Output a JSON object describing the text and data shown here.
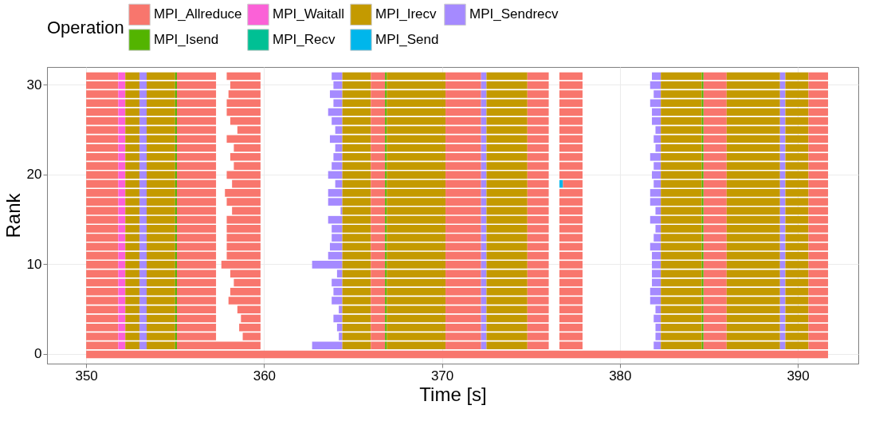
{
  "chart_data": {
    "type": "bar",
    "orientation": "horizontal",
    "xlabel": "Time [s]",
    "ylabel": "Rank",
    "legend_title": "Operation",
    "legend": "top",
    "grid": true,
    "categories": [
      null,
      "30",
      null,
      null,
      null,
      null,
      null,
      null,
      null,
      null,
      null,
      "20",
      null,
      null,
      null,
      null,
      null,
      null,
      null,
      null,
      null,
      "10",
      null,
      null,
      null,
      null,
      null,
      null,
      null,
      null,
      null,
      "0"
    ],
    "xlim": [
      347.8,
      393.4
    ],
    "xticks": [
      350,
      360,
      370,
      380,
      390
    ],
    "series": [
      {
        "name": "MPI_Allreduce",
        "color": "#f8766d",
        "base": [
          350,
          350,
          350,
          350,
          350,
          350,
          350,
          350,
          350,
          350,
          350,
          350,
          350,
          350,
          350,
          350,
          350,
          350,
          350,
          350,
          350,
          350,
          350,
          350,
          350,
          350,
          350,
          350,
          350,
          350,
          350,
          350
        ],
        "values": [
          1.8,
          1.8,
          1.8,
          1.8,
          1.8,
          1.8,
          1.8,
          1.8,
          1.8,
          1.8,
          1.8,
          1.8,
          1.8,
          1.8,
          1.8,
          1.8,
          1.8,
          1.8,
          1.8,
          1.8,
          1.8,
          1.8,
          1.8,
          1.8,
          1.8,
          1.8,
          1.8,
          1.8,
          1.8,
          1.8,
          1.8,
          41.7
        ]
      },
      {
        "name": "MPI_Waitall",
        "color": "#fb61d7",
        "base": [
          351.8,
          351.8,
          351.8,
          351.8,
          351.8,
          351.8,
          351.8,
          351.8,
          351.8,
          351.8,
          351.8,
          351.8,
          351.8,
          351.8,
          351.8,
          351.8,
          351.8,
          351.8,
          351.8,
          351.8,
          351.8,
          351.8,
          351.8,
          351.8,
          351.8,
          351.8,
          351.8,
          351.8,
          351.8,
          351.8,
          351.8,
          null
        ],
        "values": [
          0.4,
          0.4,
          0.4,
          0.4,
          0.4,
          0.4,
          0.4,
          0.4,
          0.4,
          0.4,
          0.4,
          0.4,
          0.4,
          0.4,
          0.4,
          0.4,
          0.4,
          0.4,
          0.4,
          0.4,
          0.4,
          0.4,
          0.4,
          0.4,
          0.4,
          0.4,
          0.4,
          0.4,
          0.4,
          0.4,
          0.4,
          null
        ]
      },
      {
        "name": "MPI_Irecv",
        "color": "#c49a00",
        "base": [
          352.2,
          352.2,
          352.2,
          352.2,
          352.2,
          352.2,
          352.2,
          352.2,
          352.2,
          352.2,
          352.2,
          352.2,
          352.2,
          352.2,
          352.2,
          352.2,
          352.2,
          352.2,
          352.2,
          352.2,
          352.2,
          352.2,
          352.2,
          352.2,
          352.2,
          352.2,
          352.2,
          352.2,
          352.2,
          352.2,
          352.2,
          null
        ],
        "values": [
          0.8,
          0.8,
          0.8,
          0.8,
          0.8,
          0.8,
          0.8,
          0.8,
          0.8,
          0.8,
          0.8,
          0.8,
          0.8,
          0.8,
          0.8,
          0.8,
          0.8,
          0.8,
          0.8,
          0.8,
          0.8,
          0.8,
          0.8,
          0.8,
          0.8,
          0.8,
          0.8,
          0.8,
          0.8,
          0.8,
          0.8,
          null
        ]
      },
      {
        "name": "MPI_Sendrecv",
        "color": "#a58aff",
        "base": [
          353,
          353,
          353,
          353,
          353,
          353,
          353,
          353,
          353,
          353,
          353,
          353,
          353,
          353,
          353,
          353,
          353,
          353,
          353,
          353,
          353,
          353,
          353,
          353,
          353,
          353,
          353,
          353,
          353,
          353,
          353,
          null
        ],
        "values": [
          0.4,
          0.4,
          0.4,
          0.4,
          0.4,
          0.4,
          0.4,
          0.4,
          0.4,
          0.4,
          0.4,
          0.4,
          0.4,
          0.4,
          0.4,
          0.4,
          0.4,
          0.4,
          0.4,
          0.4,
          0.4,
          0.4,
          0.4,
          0.4,
          0.4,
          0.4,
          0.4,
          0.4,
          0.4,
          0.4,
          0.4,
          null
        ]
      },
      {
        "color": "#c49a00",
        "base": [
          353.4,
          353.4,
          353.4,
          353.4,
          353.4,
          353.4,
          353.4,
          353.4,
          353.4,
          353.4,
          353.4,
          353.4,
          353.4,
          353.4,
          353.4,
          353.4,
          353.4,
          353.4,
          353.4,
          353.4,
          353.4,
          353.4,
          353.4,
          353.4,
          353.4,
          353.4,
          353.4,
          353.4,
          353.4,
          353.4,
          353.4,
          null
        ],
        "values": [
          1.6,
          1.6,
          1.6,
          1.6,
          1.6,
          1.6,
          1.6,
          1.6,
          1.6,
          1.6,
          1.6,
          1.6,
          1.6,
          1.6,
          1.6,
          1.6,
          1.6,
          1.6,
          1.6,
          1.6,
          1.6,
          1.6,
          1.6,
          1.6,
          1.6,
          1.6,
          1.6,
          1.6,
          1.6,
          1.6,
          1.6,
          null
        ]
      },
      {
        "name": "MPI_Isend",
        "color": "#53b400",
        "base": [
          355,
          355,
          355,
          355,
          355,
          355,
          355,
          355,
          355,
          355,
          355,
          355,
          355,
          355,
          355,
          355,
          355,
          355,
          355,
          355,
          355,
          355,
          355,
          355,
          355,
          355,
          355,
          355,
          355,
          355,
          355,
          null
        ],
        "values": [
          0.1,
          0.1,
          0.1,
          0.1,
          0.1,
          0.1,
          0.1,
          0.1,
          0.1,
          0.1,
          0.1,
          0.1,
          0.1,
          0.1,
          0.1,
          0.1,
          0.1,
          0.1,
          0.1,
          0.1,
          0.1,
          0.1,
          0.1,
          0.1,
          0.1,
          0.1,
          0.1,
          0.1,
          0.1,
          0.1,
          0.1,
          null
        ]
      },
      {
        "name": "MPI_Recv",
        "color": "#00c094",
        "base": [
          null,
          null,
          null,
          null,
          null,
          null,
          null,
          null,
          null,
          null,
          null,
          null,
          null,
          null,
          null,
          null,
          null,
          null,
          null,
          null,
          null,
          null,
          null,
          null,
          null,
          null,
          null,
          null,
          null,
          null,
          null,
          null
        ],
        "values": [
          null,
          null,
          null,
          null,
          null,
          null,
          null,
          null,
          null,
          null,
          null,
          null,
          null,
          null,
          null,
          null,
          null,
          null,
          null,
          null,
          null,
          null,
          null,
          null,
          null,
          null,
          null,
          null,
          null,
          null,
          null,
          null
        ]
      },
      {
        "color": "#f8766d",
        "base": [
          355.1,
          355.1,
          355.1,
          355.1,
          355.1,
          355.1,
          355.1,
          355.1,
          355.1,
          355.1,
          355.1,
          355.1,
          355.1,
          355.1,
          355.1,
          355.1,
          355.1,
          355.1,
          355.1,
          355.1,
          355.1,
          355.1,
          355.1,
          355.1,
          355.1,
          355.1,
          355.1,
          355.1,
          355.1,
          355.1,
          355.1,
          null
        ],
        "values": [
          2.2,
          2.2,
          2.2,
          2.2,
          2.2,
          2.2,
          2.2,
          2.2,
          2.2,
          2.2,
          2.2,
          2.2,
          2.2,
          2.2,
          2.2,
          2.2,
          2.2,
          2.2,
          2.2,
          2.2,
          2.2,
          2.2,
          2.2,
          2.2,
          2.2,
          2.2,
          2.2,
          2.2,
          2.2,
          2.2,
          4.7,
          null
        ]
      },
      {
        "color": "#f8766d",
        "base": [
          357.9,
          358.1,
          358.0,
          357.9,
          357.9,
          358.1,
          358.5,
          357.9,
          358.3,
          358.1,
          358.3,
          357.9,
          358.2,
          357.8,
          357.9,
          358.2,
          357.9,
          357.9,
          357.9,
          357.9,
          357.9,
          357.6,
          358.1,
          358.3,
          358.1,
          358.0,
          358.5,
          358.7,
          358.6,
          358.8,
          null,
          null
        ],
        "values": [
          1.9,
          1.7,
          1.8,
          1.9,
          1.9,
          1.7,
          1.3,
          1.9,
          1.5,
          1.7,
          1.5,
          1.9,
          1.6,
          2.0,
          1.9,
          1.6,
          1.9,
          1.9,
          1.9,
          1.9,
          1.9,
          2.2,
          1.7,
          1.5,
          1.7,
          1.8,
          1.3,
          1.1,
          1.2,
          1.0,
          null,
          null
        ]
      },
      {
        "color": "#a58aff",
        "base": [
          363.8,
          363.9,
          363.7,
          363.9,
          363.6,
          363.8,
          364.0,
          363.7,
          364.0,
          363.9,
          363.8,
          363.6,
          364.0,
          363.6,
          363.6,
          364.3,
          363.6,
          363.8,
          363.8,
          363.7,
          363.6,
          362.7,
          364.1,
          363.8,
          363.9,
          363.8,
          364.2,
          363.9,
          364.1,
          364.2,
          362.7,
          null
        ],
        "values": [
          0.6,
          0.5,
          0.7,
          0.5,
          0.8,
          0.6,
          0.4,
          0.7,
          0.4,
          0.5,
          0.6,
          0.8,
          0.4,
          0.8,
          0.8,
          0.1,
          0.8,
          0.6,
          0.6,
          0.7,
          0.8,
          1.7,
          0.3,
          0.6,
          0.5,
          0.6,
          0.2,
          0.5,
          0.3,
          0.2,
          1.7,
          null
        ]
      },
      {
        "color": "#c49a00",
        "base": [
          364.4,
          364.4,
          364.4,
          364.4,
          364.4,
          364.4,
          364.4,
          364.4,
          364.4,
          364.4,
          364.4,
          364.4,
          364.4,
          364.4,
          364.4,
          364.4,
          364.4,
          364.4,
          364.4,
          364.4,
          364.4,
          364.4,
          364.4,
          364.4,
          364.4,
          364.4,
          364.4,
          364.4,
          364.4,
          364.4,
          364.4,
          null
        ],
        "values": [
          1.6,
          1.6,
          1.6,
          1.6,
          1.6,
          1.6,
          1.6,
          1.6,
          1.6,
          1.6,
          1.6,
          1.6,
          1.6,
          1.6,
          1.6,
          1.6,
          1.6,
          1.6,
          1.6,
          1.6,
          1.6,
          1.6,
          1.6,
          1.6,
          1.6,
          1.6,
          1.6,
          1.6,
          1.6,
          1.6,
          1.6,
          null
        ]
      },
      {
        "color": "#f8766d",
        "base": [
          366,
          366,
          366,
          366,
          366,
          366,
          366,
          366,
          366,
          366,
          366,
          366,
          366,
          366,
          366,
          366,
          366,
          366,
          366,
          366,
          366,
          366,
          366,
          366,
          366,
          366,
          366,
          366,
          366,
          366,
          366,
          null
        ],
        "values": [
          0.8,
          0.8,
          0.8,
          0.8,
          0.8,
          0.8,
          0.8,
          0.8,
          0.8,
          0.8,
          0.8,
          0.8,
          0.8,
          0.8,
          0.8,
          0.8,
          0.8,
          0.8,
          0.8,
          0.8,
          0.8,
          0.8,
          0.8,
          0.8,
          0.8,
          0.8,
          0.8,
          0.8,
          0.8,
          0.8,
          0.8,
          null
        ]
      },
      {
        "color": "#53b400",
        "base": [
          366.8,
          366.8,
          366.8,
          366.8,
          366.8,
          366.8,
          366.8,
          366.8,
          366.8,
          366.8,
          366.8,
          366.8,
          366.8,
          366.8,
          366.8,
          366.8,
          366.8,
          366.8,
          366.8,
          366.8,
          366.8,
          366.8,
          366.8,
          366.8,
          366.8,
          366.8,
          366.8,
          366.8,
          366.8,
          366.8,
          366.8,
          null
        ],
        "values": [
          0.1,
          0.1,
          0.1,
          0.1,
          0.1,
          0.1,
          0.1,
          0.1,
          0.1,
          0.1,
          0.1,
          0.1,
          0.1,
          0.1,
          0.1,
          0.1,
          0.1,
          0.1,
          0.1,
          0.1,
          0.1,
          0.1,
          0.1,
          0.1,
          0.1,
          0.1,
          0.1,
          0.1,
          0.1,
          0.1,
          0.1,
          null
        ]
      },
      {
        "color": "#c49a00",
        "base": [
          366.9,
          366.9,
          366.9,
          366.9,
          366.9,
          366.9,
          366.9,
          366.9,
          366.9,
          366.9,
          366.9,
          366.9,
          366.9,
          366.9,
          366.9,
          366.9,
          366.9,
          366.9,
          366.9,
          366.9,
          366.9,
          366.9,
          366.9,
          366.9,
          366.9,
          366.9,
          366.9,
          366.9,
          366.9,
          366.9,
          366.9,
          null
        ],
        "values": [
          3.3,
          3.3,
          3.3,
          3.3,
          3.3,
          3.3,
          3.3,
          3.3,
          3.3,
          3.3,
          3.3,
          3.3,
          3.3,
          3.3,
          3.3,
          3.3,
          3.3,
          3.3,
          3.3,
          3.3,
          3.3,
          3.3,
          3.3,
          3.3,
          3.3,
          3.3,
          3.3,
          3.3,
          3.3,
          3.3,
          3.3,
          null
        ]
      },
      {
        "color": "#f8766d",
        "base": [
          370.2,
          370.2,
          370.2,
          370.2,
          370.2,
          370.2,
          370.2,
          370.2,
          370.2,
          370.2,
          370.2,
          370.2,
          370.2,
          370.2,
          370.2,
          370.2,
          370.2,
          370.2,
          370.2,
          370.2,
          370.2,
          370.2,
          370.2,
          370.2,
          370.2,
          370.2,
          370.2,
          370.2,
          370.2,
          370.2,
          370.2,
          null
        ],
        "values": [
          2.0,
          2.0,
          2.0,
          2.0,
          2.0,
          2.0,
          2.0,
          2.0,
          2.0,
          2.0,
          2.0,
          2.0,
          2.0,
          2.0,
          2.0,
          2.0,
          2.0,
          2.0,
          2.0,
          2.0,
          2.0,
          2.0,
          2.0,
          2.0,
          2.0,
          2.0,
          2.0,
          2.0,
          2.0,
          2.0,
          2.0,
          null
        ]
      },
      {
        "color": "#a58aff",
        "base": [
          372.2,
          372.2,
          372.2,
          372.2,
          372.2,
          372.2,
          372.2,
          372.2,
          372.2,
          372.2,
          372.2,
          372.2,
          372.2,
          372.2,
          372.2,
          372.2,
          372.2,
          372.2,
          372.2,
          372.2,
          372.2,
          372.2,
          372.2,
          372.2,
          372.2,
          372.2,
          372.2,
          372.2,
          372.2,
          372.2,
          372.2,
          null
        ],
        "values": [
          0.3,
          0.3,
          0.3,
          0.3,
          0.3,
          0.3,
          0.3,
          0.3,
          0.3,
          0.3,
          0.3,
          0.3,
          0.3,
          0.3,
          0.3,
          0.3,
          0.3,
          0.3,
          0.3,
          0.3,
          0.3,
          0.3,
          0.3,
          0.3,
          0.3,
          0.3,
          0.3,
          0.3,
          0.3,
          0.3,
          0.3,
          null
        ]
      },
      {
        "color": "#c49a00",
        "base": [
          372.5,
          372.5,
          372.5,
          372.5,
          372.5,
          372.5,
          372.5,
          372.5,
          372.5,
          372.5,
          372.5,
          372.5,
          372.5,
          372.5,
          372.5,
          372.5,
          372.5,
          372.5,
          372.5,
          372.5,
          372.5,
          372.5,
          372.5,
          372.5,
          372.5,
          372.5,
          372.5,
          372.5,
          372.5,
          372.5,
          372.5,
          null
        ],
        "values": [
          2.3,
          2.3,
          2.3,
          2.3,
          2.3,
          2.3,
          2.3,
          2.3,
          2.3,
          2.3,
          2.3,
          2.3,
          2.3,
          2.3,
          2.3,
          2.3,
          2.3,
          2.3,
          2.3,
          2.3,
          2.3,
          2.3,
          2.3,
          2.3,
          2.3,
          2.3,
          2.3,
          2.3,
          2.3,
          2.3,
          2.3,
          null
        ]
      },
      {
        "color": "#f8766d",
        "base": [
          374.8,
          374.8,
          374.8,
          374.8,
          374.8,
          374.8,
          374.8,
          374.8,
          374.8,
          374.8,
          374.8,
          374.8,
          374.8,
          374.8,
          374.8,
          374.8,
          374.8,
          374.8,
          374.8,
          374.8,
          374.8,
          374.8,
          374.8,
          374.8,
          374.8,
          374.8,
          374.8,
          374.8,
          374.8,
          374.8,
          374.8,
          null
        ],
        "values": [
          1.2,
          1.2,
          1.2,
          1.2,
          1.2,
          1.2,
          1.2,
          1.2,
          1.2,
          1.2,
          1.2,
          1.2,
          1.2,
          1.2,
          1.2,
          1.2,
          1.2,
          1.2,
          1.2,
          1.2,
          1.2,
          1.2,
          1.2,
          1.2,
          1.2,
          1.2,
          1.2,
          1.2,
          1.2,
          1.2,
          1.2,
          null
        ]
      },
      {
        "name": "MPI_Send",
        "color": "#00b6eb",
        "base": [
          null,
          null,
          null,
          null,
          null,
          null,
          null,
          null,
          null,
          null,
          null,
          null,
          376.6,
          null,
          null,
          null,
          null,
          null,
          null,
          null,
          null,
          null,
          null,
          null,
          null,
          null,
          null,
          null,
          null,
          null,
          null,
          null
        ],
        "values": [
          null,
          null,
          null,
          null,
          null,
          null,
          null,
          null,
          null,
          null,
          null,
          null,
          0.2,
          null,
          null,
          null,
          null,
          null,
          null,
          null,
          null,
          null,
          null,
          null,
          null,
          null,
          null,
          null,
          null,
          null,
          null,
          null
        ]
      },
      {
        "color": "#f8766d",
        "base": [
          376.6,
          376.6,
          376.6,
          376.6,
          376.6,
          376.6,
          376.6,
          376.6,
          376.6,
          376.6,
          376.6,
          376.6,
          376.8,
          376.6,
          376.6,
          376.6,
          376.6,
          376.6,
          376.6,
          376.6,
          376.6,
          376.6,
          376.6,
          376.6,
          376.6,
          376.6,
          376.6,
          376.6,
          376.6,
          376.6,
          376.6,
          null
        ],
        "values": [
          1.3,
          1.3,
          1.3,
          1.3,
          1.3,
          1.3,
          1.3,
          1.3,
          1.3,
          1.3,
          1.3,
          1.3,
          1.1,
          1.3,
          1.3,
          1.3,
          1.3,
          1.3,
          1.3,
          1.3,
          1.3,
          1.3,
          1.3,
          1.3,
          1.3,
          1.3,
          1.3,
          1.3,
          1.3,
          1.3,
          1.3,
          null
        ]
      },
      {
        "color": "#a58aff",
        "base": [
          381.8,
          381.7,
          381.9,
          381.7,
          381.8,
          381.8,
          382.0,
          381.9,
          382.0,
          381.7,
          381.9,
          381.8,
          381.9,
          381.7,
          381.7,
          382.0,
          381.7,
          382.0,
          381.9,
          381.7,
          381.8,
          381.8,
          381.8,
          381.8,
          381.7,
          381.7,
          382.0,
          381.9,
          382.0,
          382.0,
          381.9,
          null
        ],
        "values": [
          0.5,
          0.6,
          0.4,
          0.6,
          0.5,
          0.5,
          0.3,
          0.4,
          0.3,
          0.6,
          0.4,
          0.5,
          0.4,
          0.6,
          0.6,
          0.3,
          0.6,
          0.3,
          0.4,
          0.6,
          0.5,
          0.5,
          0.5,
          0.5,
          0.6,
          0.6,
          0.3,
          0.4,
          0.3,
          0.3,
          0.4,
          null
        ]
      },
      {
        "color": "#c49a00",
        "base": [
          382.3,
          382.3,
          382.3,
          382.3,
          382.3,
          382.3,
          382.3,
          382.3,
          382.3,
          382.3,
          382.3,
          382.3,
          382.3,
          382.3,
          382.3,
          382.3,
          382.3,
          382.3,
          382.3,
          382.3,
          382.3,
          382.3,
          382.3,
          382.3,
          382.3,
          382.3,
          382.3,
          382.3,
          382.3,
          382.3,
          382.3,
          null
        ],
        "values": [
          2.3,
          2.3,
          2.3,
          2.3,
          2.3,
          2.3,
          2.3,
          2.3,
          2.3,
          2.3,
          2.3,
          2.3,
          2.3,
          2.3,
          2.3,
          2.3,
          2.3,
          2.3,
          2.3,
          2.3,
          2.3,
          2.3,
          2.3,
          2.3,
          2.3,
          2.3,
          2.3,
          2.3,
          2.3,
          2.3,
          2.3,
          null
        ]
      },
      {
        "color": "#53b400",
        "base": [
          384.6,
          384.6,
          384.6,
          384.6,
          384.6,
          384.6,
          384.6,
          384.6,
          384.6,
          384.6,
          384.6,
          384.6,
          384.6,
          384.6,
          384.6,
          384.6,
          384.6,
          384.6,
          384.6,
          384.6,
          384.6,
          384.6,
          384.6,
          384.6,
          384.6,
          384.6,
          384.6,
          384.6,
          384.6,
          384.6,
          384.6,
          null
        ],
        "values": [
          0.1,
          0.1,
          0.1,
          0.1,
          0.1,
          0.1,
          0.1,
          0.1,
          0.1,
          0.1,
          0.1,
          0.1,
          0.1,
          0.1,
          0.1,
          0.1,
          0.1,
          0.1,
          0.1,
          0.1,
          0.1,
          0.1,
          0.1,
          0.1,
          0.1,
          0.1,
          0.1,
          0.1,
          0.1,
          0.1,
          0.1,
          null
        ]
      },
      {
        "color": "#f8766d",
        "base": [
          384.7,
          384.7,
          384.7,
          384.7,
          384.7,
          384.7,
          384.7,
          384.7,
          384.7,
          384.7,
          384.7,
          384.7,
          384.7,
          384.7,
          384.7,
          384.7,
          384.7,
          384.7,
          384.7,
          384.7,
          384.7,
          384.7,
          384.7,
          384.7,
          384.7,
          384.7,
          384.7,
          384.7,
          384.7,
          384.7,
          384.7,
          null
        ],
        "values": [
          1.3,
          1.3,
          1.3,
          1.3,
          1.3,
          1.3,
          1.3,
          1.3,
          1.3,
          1.3,
          1.3,
          1.3,
          1.3,
          1.3,
          1.3,
          1.3,
          1.3,
          1.3,
          1.3,
          1.3,
          1.3,
          1.3,
          1.3,
          1.3,
          1.3,
          1.3,
          1.3,
          1.3,
          1.3,
          1.3,
          1.3,
          null
        ]
      },
      {
        "color": "#c49a00",
        "base": [
          386,
          386,
          386,
          386,
          386,
          386,
          386,
          386,
          386,
          386,
          386,
          386,
          386,
          386,
          386,
          386,
          386,
          386,
          386,
          386,
          386,
          386,
          386,
          386,
          386,
          386,
          386,
          386,
          386,
          386,
          386,
          null
        ],
        "values": [
          3.0,
          3.0,
          3.0,
          3.0,
          3.0,
          3.0,
          3.0,
          3.0,
          3.0,
          3.0,
          3.0,
          3.0,
          3.0,
          3.0,
          3.0,
          3.0,
          3.0,
          3.0,
          3.0,
          3.0,
          3.0,
          3.0,
          3.0,
          3.0,
          3.0,
          3.0,
          3.0,
          3.0,
          3.0,
          3.0,
          3.0,
          null
        ]
      },
      {
        "color": "#a58aff",
        "base": [
          389,
          389,
          389,
          389,
          389,
          389,
          389,
          389,
          389,
          389,
          389,
          389,
          389,
          389,
          389,
          389,
          389,
          389,
          389,
          389,
          389,
          389,
          389,
          389,
          389,
          389,
          389,
          389,
          389,
          389,
          389,
          null
        ],
        "values": [
          0.3,
          0.3,
          0.3,
          0.3,
          0.3,
          0.3,
          0.3,
          0.3,
          0.3,
          0.3,
          0.3,
          0.3,
          0.3,
          0.3,
          0.3,
          0.3,
          0.3,
          0.3,
          0.3,
          0.3,
          0.3,
          0.3,
          0.3,
          0.3,
          0.3,
          0.3,
          0.3,
          0.3,
          0.3,
          0.3,
          0.3,
          null
        ]
      },
      {
        "color": "#c49a00",
        "base": [
          389.3,
          389.3,
          389.3,
          389.3,
          389.3,
          389.3,
          389.3,
          389.3,
          389.3,
          389.3,
          389.3,
          389.3,
          389.3,
          389.3,
          389.3,
          389.3,
          389.3,
          389.3,
          389.3,
          389.3,
          389.3,
          389.3,
          389.3,
          389.3,
          389.3,
          389.3,
          389.3,
          389.3,
          389.3,
          389.3,
          389.3,
          null
        ],
        "values": [
          1.3,
          1.3,
          1.3,
          1.3,
          1.3,
          1.3,
          1.3,
          1.3,
          1.3,
          1.3,
          1.3,
          1.3,
          1.3,
          1.3,
          1.3,
          1.3,
          1.3,
          1.3,
          1.3,
          1.3,
          1.3,
          1.3,
          1.3,
          1.3,
          1.3,
          1.3,
          1.3,
          1.3,
          1.3,
          1.3,
          1.3,
          null
        ]
      },
      {
        "color": "#f8766d",
        "base": [
          390.6,
          390.6,
          390.6,
          390.6,
          390.6,
          390.6,
          390.6,
          390.6,
          390.6,
          390.6,
          390.6,
          390.6,
          390.6,
          390.6,
          390.6,
          390.6,
          390.6,
          390.6,
          390.6,
          390.6,
          390.6,
          390.6,
          390.6,
          390.6,
          390.6,
          390.6,
          390.6,
          390.6,
          390.6,
          390.6,
          390.6,
          null
        ],
        "values": [
          1.1,
          1.1,
          1.1,
          1.1,
          1.1,
          1.1,
          1.1,
          1.1,
          1.1,
          1.1,
          1.1,
          1.1,
          1.1,
          1.1,
          1.1,
          1.1,
          1.1,
          1.1,
          1.1,
          1.1,
          1.1,
          1.1,
          1.1,
          1.1,
          1.1,
          1.1,
          1.1,
          1.1,
          1.1,
          1.1,
          1.1,
          null
        ]
      }
    ]
  }
}
